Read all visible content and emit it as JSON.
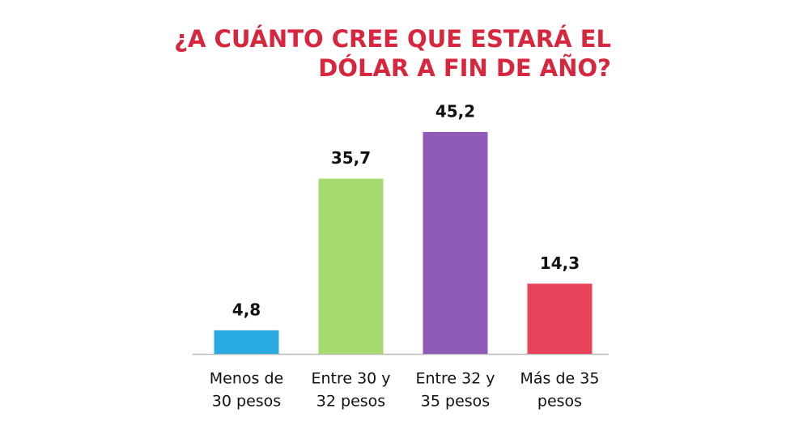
{
  "chart_data": {
    "type": "bar",
    "title": [
      "¿A CUÁNTO CREE QUE ESTARÁ EL",
      "DÓLAR A FIN DE AÑO?"
    ],
    "categories": [
      [
        "Menos de",
        "30 pesos"
      ],
      [
        "Entre 30 y",
        "32 pesos"
      ],
      [
        "Entre 32 y",
        "35 pesos"
      ],
      [
        "Más de 35",
        "pesos"
      ]
    ],
    "values": [
      4.8,
      35.7,
      45.2,
      14.3
    ],
    "value_labels": [
      "4,8",
      "35,7",
      "45,2",
      "14,3"
    ],
    "colors": [
      "#29abe2",
      "#a6d96f",
      "#8e5bb6",
      "#e8435b"
    ]
  }
}
